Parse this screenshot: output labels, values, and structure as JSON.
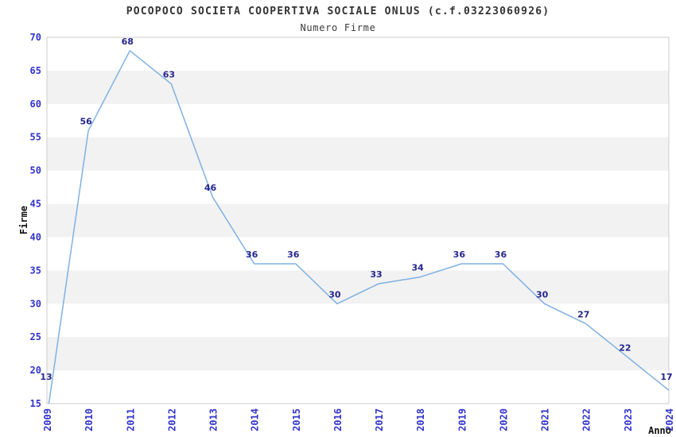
{
  "title": "POCOPOCO SOCIETA COOPERTIVA SOCIALE ONLUS (c.f.03223060926)",
  "subtitle": "Numero Firme",
  "chart_data": {
    "type": "line",
    "title": "POCOPOCO SOCIETA COOPERTIVA SOCIALE ONLUS (c.f.03223060926)",
    "subtitle": "Numero Firme",
    "xlabel": "Anno",
    "ylabel": "Firme",
    "categories": [
      "2009",
      "2010",
      "2011",
      "2012",
      "2013",
      "2014",
      "2015",
      "2016",
      "2017",
      "2018",
      "2019",
      "2020",
      "2021",
      "2022",
      "2023",
      "2024"
    ],
    "values": [
      13,
      56,
      68,
      63,
      46,
      36,
      36,
      30,
      33,
      34,
      36,
      36,
      30,
      27,
      22,
      17
    ],
    "ylim": [
      15,
      70
    ],
    "ytick_step": 5,
    "yticks": [
      15,
      20,
      25,
      30,
      35,
      40,
      45,
      50,
      55,
      60,
      65,
      70
    ],
    "grid": "alternating-horizontal-bands",
    "legend": "none",
    "point_labels_shown": true,
    "colors": {
      "background": "#ffffff",
      "line": "#7fb0e2",
      "band_gray": "#f2f2f2",
      "plot_border": "#cccccc",
      "tick_label": "#3333cc",
      "value_label": "#26268f",
      "title_text": "#333333",
      "axis_label_text": "#111111"
    }
  }
}
